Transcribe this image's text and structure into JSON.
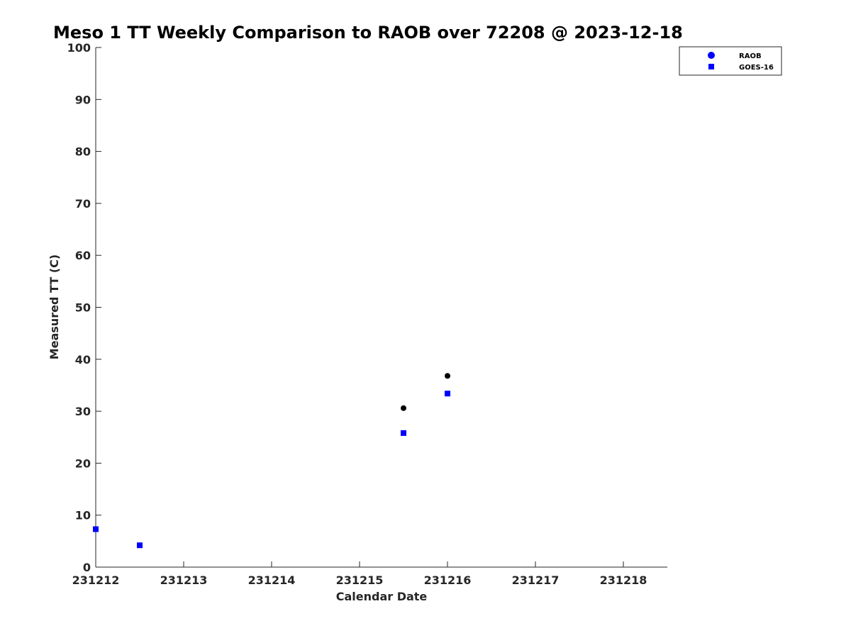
{
  "chart_data": {
    "type": "scatter",
    "title": "Meso 1 TT Weekly Comparison to RAOB over 72208 @ 2023-12-18",
    "xlabel": "Calendar Date",
    "ylabel": "Measured TT (C)",
    "x_ticks": [
      "231212",
      "231213",
      "231214",
      "231215",
      "231216",
      "231217",
      "231218"
    ],
    "xlim": [
      "231212",
      "231218.5"
    ],
    "ylim": [
      0,
      100
    ],
    "y_ticks": [
      0,
      10,
      20,
      30,
      40,
      50,
      60,
      70,
      80,
      90,
      100
    ],
    "grid": false,
    "legend_position": "top-right (outside plot)",
    "series": [
      {
        "name": "RAOB",
        "marker": "circle",
        "color": "#000000",
        "legend_color": "#0000ff",
        "points": [
          {
            "x": "231215.5",
            "y": 30.6
          },
          {
            "x": "231216",
            "y": 36.8
          }
        ]
      },
      {
        "name": "GOES-16",
        "marker": "square",
        "color": "#0000ff",
        "points": [
          {
            "x": "231212",
            "y": 7.3
          },
          {
            "x": "231212.5",
            "y": 4.2
          },
          {
            "x": "231215.5",
            "y": 25.8
          },
          {
            "x": "231216",
            "y": 33.4
          }
        ]
      }
    ]
  }
}
